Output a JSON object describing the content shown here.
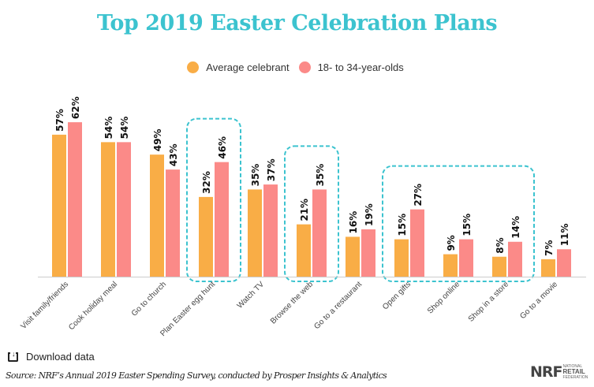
{
  "chart_data": {
    "type": "bar",
    "title": "Top 2019 Easter Celebration Plans",
    "xlabel": "",
    "ylabel": "",
    "ylim": [
      0,
      65
    ],
    "grid": false,
    "legend_position": "top-center",
    "categories": [
      "Visit family/friends",
      "Cook holiday meal",
      "Go to church",
      "Plan Easter egg hunt",
      "Watch TV",
      "Browse the web",
      "Go to a restaurant",
      "Open gifts",
      "Shop online",
      "Shop in a store",
      "Go to a movie"
    ],
    "series": [
      {
        "name": "Average celebrant",
        "color": "#f9ad46",
        "values": [
          57,
          54,
          49,
          32,
          35,
          21,
          16,
          15,
          9,
          8,
          7
        ]
      },
      {
        "name": "18- to 34-year-olds",
        "color": "#fb8a88",
        "values": [
          62,
          54,
          43,
          46,
          37,
          35,
          19,
          27,
          15,
          14,
          11
        ]
      }
    ],
    "value_suffix": "%",
    "highlight_groups": [
      {
        "categories": [
          "Plan Easter egg hunt"
        ],
        "color": "#3cc3cf"
      },
      {
        "categories": [
          "Browse the web"
        ],
        "color": "#3cc3cf"
      },
      {
        "categories": [
          "Open gifts",
          "Shop online",
          "Shop in a store"
        ],
        "color": "#3cc3cf"
      }
    ]
  },
  "legend": [
    {
      "label": "Average celebrant",
      "color": "#f9ad46"
    },
    {
      "label": "18- to 34-year-olds",
      "color": "#fb8a88"
    }
  ],
  "download": {
    "label": "Download data",
    "icon": "download-icon"
  },
  "source": "Source: NRF’s Annual 2019 Easter Spending Survey, conducted by Prosper Insights & Analytics",
  "logo": {
    "main": "NRF",
    "line1": "NATIONAL",
    "line2": "RETAIL",
    "line3": "FEDERATION"
  }
}
